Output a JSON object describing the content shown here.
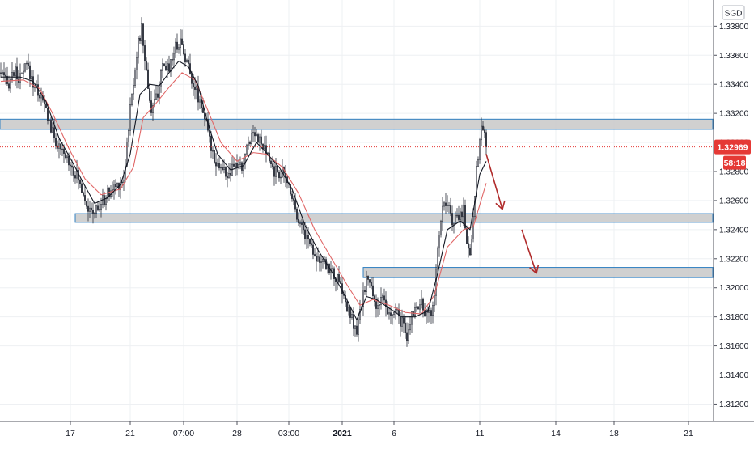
{
  "currency_label": "SGD",
  "price_badge": "1.32969",
  "countdown_badge": "58:18",
  "colors": {
    "background": "#ffffff",
    "grid": "#eef0f3",
    "axis_line": "#50535e",
    "zone_fill": "#c8c8c8",
    "zone_stroke": "#2f7fc1",
    "candle_body": "#2a2e39",
    "candle_up_fill": "#ffffff",
    "ema_fast": "#131722",
    "ema_slow": "#e06666",
    "price_line": "#e53935",
    "badge_bg": "#e53935",
    "badge_text": "#ffffff",
    "arrow": "#b02a2a"
  },
  "chart_data": {
    "type": "candlestick",
    "title": "",
    "ylabel": "",
    "xlabel": "",
    "ylim": [
      1.3108,
      1.3398
    ],
    "grid": true,
    "y_axis_position": "right",
    "y_ticks": [
      "1.31200",
      "1.31400",
      "1.31600",
      "1.31800",
      "1.32000",
      "1.32200",
      "1.32400",
      "1.32600",
      "1.32800",
      "1.33000",
      "1.33200",
      "1.33400",
      "1.33600",
      "1.33800"
    ],
    "x_ticks": [
      {
        "label": "17",
        "bar": 43,
        "bold": false
      },
      {
        "label": "21",
        "bar": 80,
        "bold": false
      },
      {
        "label": "07:00",
        "bar": 113,
        "bold": false
      },
      {
        "label": "28",
        "bar": 146,
        "bold": false
      },
      {
        "label": "03:00",
        "bar": 178,
        "bold": false
      },
      {
        "label": "2021",
        "bar": 211,
        "bold": true
      },
      {
        "label": "6",
        "bar": 243,
        "bold": false
      },
      {
        "label": "11",
        "bar": 296,
        "bold": false
      },
      {
        "label": "14",
        "bar": 343,
        "bold": false
      },
      {
        "label": "18",
        "bar": 379,
        "bold": false
      },
      {
        "label": "21",
        "bar": 425,
        "bold": false
      }
    ],
    "total_slots": 440,
    "last_price": 1.32969,
    "zones": [
      {
        "name": "resistance-zone",
        "x_start_bar": 0,
        "low": 1.3309,
        "high": 1.3316
      },
      {
        "name": "middle-support-zone",
        "x_start_bar": 46,
        "low": 1.3245,
        "high": 1.3251
      },
      {
        "name": "lower-support-zone",
        "x_start_bar": 224,
        "low": 1.3207,
        "high": 1.3214
      }
    ],
    "price_path": [
      [
        0,
        1.3348
      ],
      [
        4,
        1.3339
      ],
      [
        8,
        1.3349
      ],
      [
        12,
        1.3343
      ],
      [
        16,
        1.3353
      ],
      [
        20,
        1.3341
      ],
      [
        24,
        1.3333
      ],
      [
        28,
        1.3322
      ],
      [
        32,
        1.3306
      ],
      [
        37,
        1.3293
      ],
      [
        42,
        1.3288
      ],
      [
        47,
        1.3277
      ],
      [
        52,
        1.3263
      ],
      [
        55,
        1.3251
      ],
      [
        60,
        1.3254
      ],
      [
        65,
        1.3263
      ],
      [
        70,
        1.3269
      ],
      [
        76,
        1.3275
      ],
      [
        80,
        1.3323
      ],
      [
        84,
        1.3362
      ],
      [
        87,
        1.3378
      ],
      [
        90,
        1.3348
      ],
      [
        93,
        1.3322
      ],
      [
        96,
        1.333
      ],
      [
        100,
        1.335
      ],
      [
        104,
        1.3353
      ],
      [
        108,
        1.3366
      ],
      [
        111,
        1.337
      ],
      [
        114,
        1.3359
      ],
      [
        117,
        1.3348
      ],
      [
        121,
        1.3335
      ],
      [
        125,
        1.3323
      ],
      [
        129,
        1.3301
      ],
      [
        133,
        1.3287
      ],
      [
        137,
        1.3281
      ],
      [
        141,
        1.3276
      ],
      [
        145,
        1.3285
      ],
      [
        149,
        1.3282
      ],
      [
        153,
        1.3301
      ],
      [
        157,
        1.3309
      ],
      [
        161,
        1.3298
      ],
      [
        165,
        1.329
      ],
      [
        169,
        1.328
      ],
      [
        174,
        1.3279
      ],
      [
        179,
        1.3268
      ],
      [
        183,
        1.3251
      ],
      [
        187,
        1.3239
      ],
      [
        191,
        1.3231
      ],
      [
        195,
        1.3222
      ],
      [
        199,
        1.3216
      ],
      [
        203,
        1.3214
      ],
      [
        207,
        1.3207
      ],
      [
        211,
        1.3198
      ],
      [
        214,
        1.3185
      ],
      [
        217,
        1.3178
      ],
      [
        220,
        1.3168
      ],
      [
        223,
        1.3189
      ],
      [
        226,
        1.3207
      ],
      [
        229,
        1.3199
      ],
      [
        232,
        1.3188
      ],
      [
        236,
        1.3191
      ],
      [
        240,
        1.318
      ],
      [
        244,
        1.3183
      ],
      [
        248,
        1.3176
      ],
      [
        251,
        1.3163
      ],
      [
        254,
        1.3182
      ],
      [
        257,
        1.3189
      ],
      [
        260,
        1.3188
      ],
      [
        263,
        1.3181
      ],
      [
        266,
        1.3183
      ],
      [
        268,
        1.3198
      ],
      [
        270,
        1.3226
      ],
      [
        272,
        1.3249
      ],
      [
        274,
        1.3256
      ],
      [
        277,
        1.3253
      ],
      [
        280,
        1.3245
      ],
      [
        283,
        1.3248
      ],
      [
        286,
        1.3255
      ],
      [
        288,
        1.3232
      ],
      [
        290,
        1.3223
      ],
      [
        292,
        1.3249
      ],
      [
        294,
        1.3283
      ],
      [
        296,
        1.3302
      ],
      [
        298,
        1.3312
      ],
      [
        300,
        1.3297
      ]
    ],
    "ema_fast": [
      [
        0,
        1.3345
      ],
      [
        12,
        1.3345
      ],
      [
        20,
        1.3342
      ],
      [
        28,
        1.3328
      ],
      [
        36,
        1.3303
      ],
      [
        44,
        1.3287
      ],
      [
        52,
        1.327
      ],
      [
        58,
        1.3258
      ],
      [
        66,
        1.3262
      ],
      [
        74,
        1.3271
      ],
      [
        80,
        1.3292
      ],
      [
        86,
        1.3333
      ],
      [
        92,
        1.334
      ],
      [
        98,
        1.3339
      ],
      [
        104,
        1.3348
      ],
      [
        110,
        1.3356
      ],
      [
        116,
        1.3352
      ],
      [
        122,
        1.3339
      ],
      [
        128,
        1.3313
      ],
      [
        134,
        1.3292
      ],
      [
        142,
        1.3281
      ],
      [
        150,
        1.3284
      ],
      [
        158,
        1.33
      ],
      [
        164,
        1.3293
      ],
      [
        172,
        1.3283
      ],
      [
        180,
        1.3268
      ],
      [
        188,
        1.3243
      ],
      [
        196,
        1.3226
      ],
      [
        204,
        1.3212
      ],
      [
        212,
        1.3196
      ],
      [
        220,
        1.3178
      ],
      [
        226,
        1.3194
      ],
      [
        232,
        1.3192
      ],
      [
        240,
        1.3186
      ],
      [
        248,
        1.318
      ],
      [
        256,
        1.318
      ],
      [
        264,
        1.3184
      ],
      [
        270,
        1.321
      ],
      [
        276,
        1.324
      ],
      [
        284,
        1.3246
      ],
      [
        290,
        1.324
      ],
      [
        296,
        1.3278
      ],
      [
        300,
        1.3287
      ]
    ],
    "ema_slow": [
      [
        0,
        1.3342
      ],
      [
        14,
        1.3343
      ],
      [
        24,
        1.3337
      ],
      [
        32,
        1.332
      ],
      [
        42,
        1.3296
      ],
      [
        52,
        1.3275
      ],
      [
        62,
        1.3264
      ],
      [
        74,
        1.3268
      ],
      [
        82,
        1.3283
      ],
      [
        88,
        1.3317
      ],
      [
        96,
        1.3327
      ],
      [
        104,
        1.3338
      ],
      [
        112,
        1.3348
      ],
      [
        120,
        1.3343
      ],
      [
        128,
        1.3322
      ],
      [
        136,
        1.33
      ],
      [
        146,
        1.3287
      ],
      [
        156,
        1.3293
      ],
      [
        164,
        1.3292
      ],
      [
        174,
        1.3283
      ],
      [
        184,
        1.3265
      ],
      [
        194,
        1.324
      ],
      [
        204,
        1.3221
      ],
      [
        214,
        1.3202
      ],
      [
        222,
        1.3188
      ],
      [
        230,
        1.3192
      ],
      [
        240,
        1.3188
      ],
      [
        250,
        1.3183
      ],
      [
        260,
        1.3182
      ],
      [
        268,
        1.3195
      ],
      [
        276,
        1.3228
      ],
      [
        286,
        1.324
      ],
      [
        292,
        1.3242
      ],
      [
        300,
        1.3272
      ]
    ],
    "arrows": [
      {
        "from": [
          300,
          1.3292
        ],
        "to": [
          310,
          1.3254
        ]
      },
      {
        "from": [
          322,
          1.324
        ],
        "to": [
          331,
          1.321
        ]
      }
    ]
  }
}
